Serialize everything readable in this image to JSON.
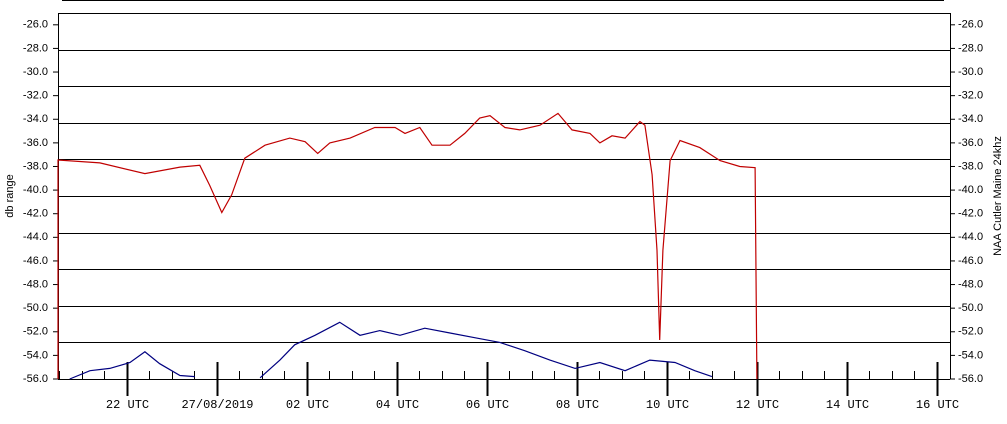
{
  "chart_data": {
    "type": "line",
    "ylabel": "db range",
    "y2label": "NAA Cutler Maine 24khz",
    "xlim": [
      -3.53,
      16.29
    ],
    "ylim": [
      -56,
      -25
    ],
    "y2lim": [
      -56,
      -25
    ],
    "yticks": [
      {
        "value": -26,
        "label": "-26.0"
      },
      {
        "value": -28,
        "label": "-28.0"
      },
      {
        "value": -30,
        "label": "-30.0"
      },
      {
        "value": -32,
        "label": "-32.0"
      },
      {
        "value": -34,
        "label": "-34.0"
      },
      {
        "value": -36,
        "label": "-36.0"
      },
      {
        "value": -38,
        "label": "-38.0"
      },
      {
        "value": -40,
        "label": "-40.0"
      },
      {
        "value": -42,
        "label": "-42.0"
      },
      {
        "value": -44,
        "label": "-44.0"
      },
      {
        "value": -46,
        "label": "-46.0"
      },
      {
        "value": -48,
        "label": "-48.0"
      },
      {
        "value": -50,
        "label": "-50.0"
      },
      {
        "value": -52,
        "label": "-52.0"
      },
      {
        "value": -54,
        "label": "-54.0"
      },
      {
        "value": -56,
        "label": "-56.0"
      }
    ],
    "y2ticks": [
      {
        "value": -26,
        "label": "-26.0"
      },
      {
        "value": -28,
        "label": "-28.0"
      },
      {
        "value": -30,
        "label": "-30.0"
      },
      {
        "value": -32,
        "label": "-32.0"
      },
      {
        "value": -34,
        "label": "-34.0"
      },
      {
        "value": -36,
        "label": "-36.0"
      },
      {
        "value": -38,
        "label": "-38.0"
      },
      {
        "value": -40,
        "label": "-40.0"
      },
      {
        "value": -42,
        "label": "-42.0"
      },
      {
        "value": -44,
        "label": "-44.0"
      },
      {
        "value": -46,
        "label": "-46.0"
      },
      {
        "value": -48,
        "label": "-48.0"
      },
      {
        "value": -50,
        "label": "-50.0"
      },
      {
        "value": -52,
        "label": "-52.0"
      },
      {
        "value": -54,
        "label": "-54.0"
      },
      {
        "value": -56,
        "label": "-56.0"
      }
    ],
    "xticks": [
      {
        "value": -2,
        "label": "22 UTC"
      },
      {
        "value": 0,
        "label": "27/08/2019"
      },
      {
        "value": 2,
        "label": "02 UTC"
      },
      {
        "value": 4,
        "label": "04 UTC"
      },
      {
        "value": 6,
        "label": "06 UTC"
      },
      {
        "value": 8,
        "label": "08 UTC"
      },
      {
        "value": 10,
        "label": "10 UTC"
      },
      {
        "value": 12,
        "label": "12 UTC"
      },
      {
        "value": 14,
        "label": "14 UTC"
      },
      {
        "value": 16,
        "label": "16 UTC"
      }
    ],
    "xticks_minor": [
      -3.5,
      -3,
      -2.5,
      -1.5,
      -1,
      -0.5,
      0.5,
      1,
      1.5,
      2.5,
      3,
      3.5,
      4.5,
      5,
      5.5,
      6.5,
      7,
      7.5,
      8.5,
      9,
      9.5,
      10.5,
      11,
      11.5,
      12.5,
      13,
      13.5,
      14.5,
      15,
      15.5
    ],
    "grid": true,
    "series": [
      {
        "color": "#c00000",
        "x": [
          -3.53,
          -3.53,
          -2.6,
          -1.6,
          -0.82,
          -0.38,
          -0.16,
          0.11,
          0.33,
          0.62,
          1.07,
          1.62,
          1.96,
          2.24,
          2.51,
          2.96,
          3.51,
          3.96,
          4.18,
          4.51,
          4.78,
          5.18,
          5.51,
          5.84,
          6.07,
          6.4,
          6.73,
          7.18,
          7.58,
          7.89,
          8.29,
          8.51,
          8.78,
          9.07,
          9.4,
          9.51,
          9.67,
          9.78,
          9.84,
          9.91,
          10.07,
          10.29,
          10.73,
          11.18,
          11.62,
          11.96,
          12.0
        ],
        "values": [
          -56,
          -37.45,
          -37.7,
          -38.6,
          -38.05,
          -37.9,
          -39.6,
          -41.9,
          -40.4,
          -37.3,
          -36.2,
          -35.6,
          -35.9,
          -36.9,
          -36.0,
          -35.6,
          -34.7,
          -34.7,
          -35.2,
          -34.7,
          -36.2,
          -36.2,
          -35.2,
          -33.9,
          -33.7,
          -34.7,
          -34.9,
          -34.5,
          -33.5,
          -34.9,
          -35.2,
          -36.0,
          -35.4,
          -35.6,
          -34.2,
          -34.5,
          -38.7,
          -45.1,
          -52.7,
          -45.1,
          -37.5,
          -35.8,
          -36.4,
          -37.5,
          -38.0,
          -38.1,
          -56
        ]
      },
      {
        "color": "#000080",
        "x": [
          -3.27,
          -2.82,
          -2.38,
          -1.93,
          -1.6,
          -1.27,
          -0.82,
          -0.49,
          null,
          0.96,
          1.4,
          1.73,
          2.18,
          2.73,
          3.18,
          3.62,
          4.07,
          4.62,
          5.18,
          5.73,
          6.29,
          6.84,
          7.4,
          7.96,
          8.51,
          9.07,
          9.62,
          10.18,
          10.62,
          11.0
        ],
        "values": [
          -56,
          -55.3,
          -55.1,
          -54.6,
          -53.7,
          -54.7,
          -55.7,
          -55.8,
          null,
          -55.9,
          -54.4,
          -53.1,
          -52.3,
          -51.2,
          -52.3,
          -51.9,
          -52.3,
          -51.7,
          -52.1,
          -52.5,
          -52.9,
          -53.6,
          -54.4,
          -55.1,
          -54.6,
          -55.3,
          -54.4,
          -54.6,
          -55.3,
          -55.8
        ]
      }
    ]
  }
}
